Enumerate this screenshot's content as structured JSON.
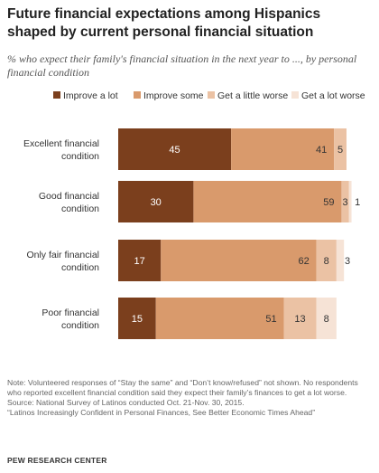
{
  "chart_data": {
    "type": "bar",
    "orientation": "horizontal",
    "stacked": true,
    "title": "Future financial expectations among Hispanics shaped by current personal financial situation",
    "subtitle": "% who expect their family's financial situation in the next year to ..., by personal financial condition",
    "categories": [
      [
        "Excellent financial",
        "condition"
      ],
      [
        "Good financial",
        "condition"
      ],
      [
        "Only fair financial",
        "condition"
      ],
      [
        "Poor financial",
        "condition"
      ]
    ],
    "series": [
      {
        "name": "Improve a lot",
        "color": "#7b3f1d",
        "label_color": "#ffffff",
        "values": [
          45,
          30,
          17,
          15
        ]
      },
      {
        "name": "Improve some",
        "color": "#d99a6c",
        "label_color": "#333333",
        "values": [
          41,
          59,
          62,
          51
        ]
      },
      {
        "name": "Get a little worse",
        "color": "#ebc2a4",
        "label_color": "#333333",
        "values": [
          5,
          3,
          8,
          13
        ]
      },
      {
        "name": "Get a lot worse",
        "color": "#f6e3d6",
        "label_color": "#333333",
        "values": [
          0,
          1,
          3,
          8
        ]
      }
    ],
    "labels": [
      [
        "45",
        "41",
        "5",
        ""
      ],
      [
        "30",
        "59",
        "3",
        "1"
      ],
      [
        "17",
        "62",
        "8",
        "3"
      ],
      [
        "15",
        "51",
        "13",
        "8"
      ]
    ],
    "xlim": [
      0,
      100
    ],
    "legend_position": "top"
  },
  "notes": {
    "note": "Note: Volunteered responses of “Stay the same” and “Don’t know/refused” not shown. No respondents who reported excellent financial condition said they expect their family’s finances to get a lot worse.",
    "source": "Source: National Survey of Latinos conducted Oct. 21-Nov. 30, 2015.",
    "report": "“Latinos Increasingly Confident in Personal Finances, See Better Economic Times Ahead”"
  },
  "brand": "PEW RESEARCH CENTER"
}
